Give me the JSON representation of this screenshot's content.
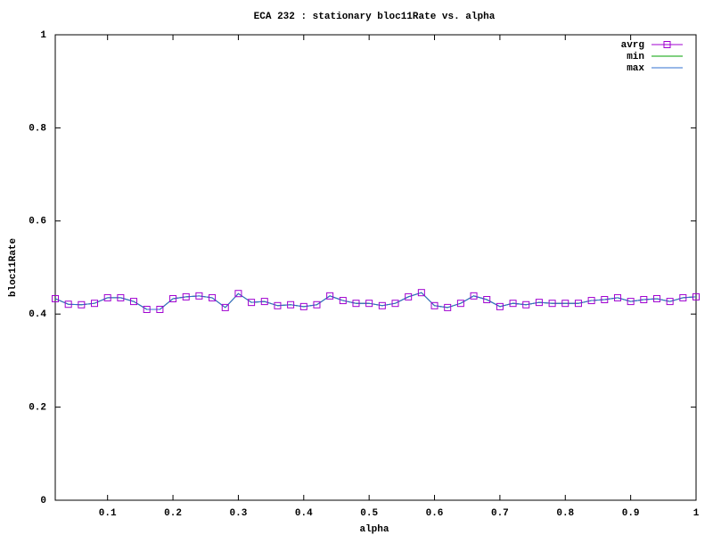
{
  "chart_data": {
    "type": "line",
    "title": "ECA 232 : stationary bloc11Rate vs. alpha",
    "x_label": "alpha",
    "y_label": "bloc11Rate",
    "x": [
      0.02,
      0.04,
      0.06,
      0.08,
      0.1,
      0.12,
      0.14,
      0.16,
      0.18,
      0.2,
      0.22,
      0.24,
      0.26,
      0.28,
      0.3,
      0.32,
      0.34,
      0.36,
      0.38,
      0.4,
      0.42,
      0.44,
      0.46,
      0.48,
      0.5,
      0.52,
      0.54,
      0.56,
      0.58,
      0.6,
      0.62,
      0.64,
      0.66,
      0.68,
      0.7,
      0.72,
      0.74,
      0.76,
      0.78,
      0.8,
      0.82,
      0.84,
      0.86,
      0.88,
      0.9,
      0.92,
      0.94,
      0.96,
      0.98,
      1
    ],
    "series": [
      {
        "name": "avrg",
        "color": "#a000d0",
        "marker": "square",
        "values": [
          0.433,
          0.421,
          0.42,
          0.423,
          0.435,
          0.435,
          0.427,
          0.41,
          0.41,
          0.433,
          0.437,
          0.439,
          0.435,
          0.414,
          0.444,
          0.425,
          0.427,
          0.418,
          0.42,
          0.416,
          0.42,
          0.439,
          0.429,
          0.423,
          0.423,
          0.418,
          0.423,
          0.437,
          0.446,
          0.418,
          0.414,
          0.423,
          0.439,
          0.431,
          0.416,
          0.423,
          0.42,
          0.425,
          0.423,
          0.423,
          0.423,
          0.429,
          0.431,
          0.435,
          0.427,
          0.431,
          0.433,
          0.427,
          0.435,
          0.437
        ]
      },
      {
        "name": "min",
        "color": "#00a000",
        "values": [
          0.433,
          0.421,
          0.42,
          0.423,
          0.435,
          0.435,
          0.427,
          0.41,
          0.41,
          0.433,
          0.437,
          0.439,
          0.435,
          0.414,
          0.444,
          0.425,
          0.427,
          0.418,
          0.42,
          0.416,
          0.42,
          0.439,
          0.429,
          0.423,
          0.423,
          0.418,
          0.423,
          0.437,
          0.446,
          0.418,
          0.414,
          0.423,
          0.439,
          0.431,
          0.416,
          0.423,
          0.42,
          0.425,
          0.423,
          0.423,
          0.423,
          0.429,
          0.431,
          0.435,
          0.427,
          0.431,
          0.433,
          0.427,
          0.435,
          0.437
        ]
      },
      {
        "name": "max",
        "color": "#3070d0",
        "values": [
          0.433,
          0.421,
          0.42,
          0.423,
          0.435,
          0.435,
          0.427,
          0.41,
          0.41,
          0.433,
          0.437,
          0.439,
          0.435,
          0.414,
          0.444,
          0.425,
          0.427,
          0.418,
          0.42,
          0.416,
          0.42,
          0.439,
          0.429,
          0.423,
          0.423,
          0.418,
          0.423,
          0.437,
          0.446,
          0.418,
          0.414,
          0.423,
          0.439,
          0.431,
          0.416,
          0.423,
          0.42,
          0.425,
          0.423,
          0.423,
          0.423,
          0.429,
          0.431,
          0.435,
          0.427,
          0.431,
          0.433,
          0.427,
          0.435,
          0.437
        ]
      }
    ],
    "xlim": [
      0.02,
      1
    ],
    "xticks": [
      0.1,
      0.2,
      0.3,
      0.4,
      0.5,
      0.6,
      0.7,
      0.8,
      0.9,
      1
    ],
    "ylim": [
      0,
      1
    ],
    "yticks": [
      0,
      0.2,
      0.4,
      0.6,
      0.8,
      1
    ],
    "legend": "top right"
  }
}
